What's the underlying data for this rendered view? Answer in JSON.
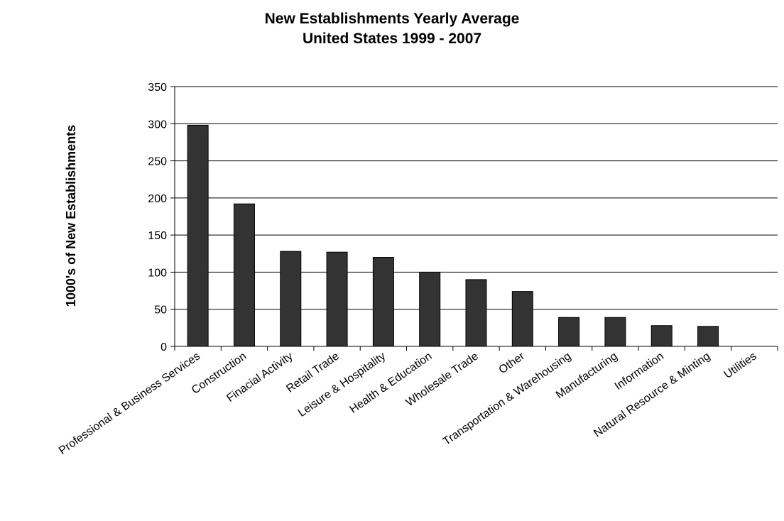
{
  "chart_data": {
    "type": "bar",
    "title": "New Establishments Yearly Average",
    "subtitle": "United States 1999 - 2007",
    "ylabel": "1000's of New Establishments",
    "xlabel": "",
    "ylim": [
      0,
      350
    ],
    "yticks": [
      0,
      50,
      100,
      150,
      200,
      250,
      300,
      350
    ],
    "grid": true,
    "categories": [
      "Professional & Business Services",
      "Construction",
      "Finacial Activity",
      "Retail Trade",
      "Leisure & Hospitality",
      "Health & Education",
      "Wholesale Trade",
      "Other",
      "Transportation & Warehousing",
      "Manufacturing",
      "Information",
      "Natural Resource & Minting",
      "Utilities"
    ],
    "values": [
      298,
      192,
      128,
      127,
      120,
      100,
      90,
      74,
      39,
      39,
      28,
      27,
      0
    ],
    "colors": {
      "bar": "#333333",
      "bar_border": "#000000",
      "grid": "#000000"
    }
  }
}
